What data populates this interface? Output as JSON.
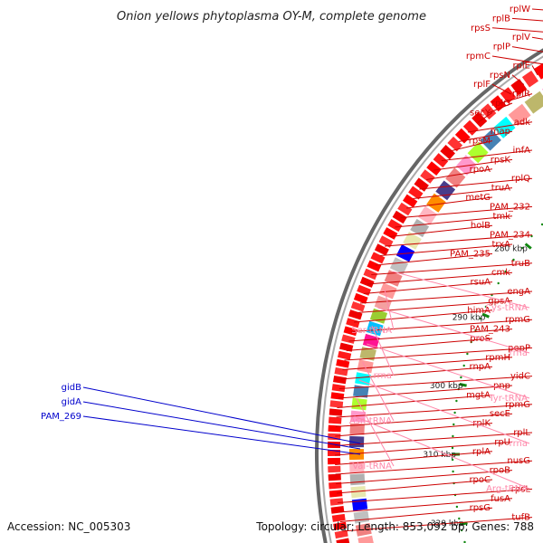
{
  "title": "Onion yellows phytoplasma OY-M, complete genome",
  "footer": {
    "accession": "Accession: NC_005303",
    "summary": "Topology: circular; Length: 853,092 bp; Genes: 788"
  },
  "colors": {
    "gene_red": "#ff0000",
    "gene_label": "#cc0000",
    "rna_label": "#ff88aa",
    "blue_label": "#0000cc",
    "backbone": "#777777",
    "tick": "#118811"
  },
  "scale_ticks": [
    "250 kbp",
    "260 kbp",
    "270 kbp",
    "280 kbp",
    "290 kbp",
    "300 kbp",
    "310 kbp",
    "320 kbp"
  ],
  "red_labels": [
    "rplW",
    "rplB",
    "rpsS",
    "rplV",
    "rplP",
    "rpmC",
    "rplE",
    "rpsN",
    "rplF",
    "rplR",
    "rplO",
    "secY",
    "adk",
    "map",
    "rpsM",
    "infA",
    "rpsK",
    "rpoA",
    "rplQ",
    "truA",
    "metG",
    "PAM_232",
    "tmk",
    "holB",
    "PAM_234",
    "trxA",
    "PAM_235",
    "truB",
    "cmk",
    "rsuA",
    "engA",
    "gpsA",
    "himA",
    "rpmG",
    "PAM_243",
    "proS",
    "pepP",
    "rpmH",
    "rnpA",
    "yidC",
    "pnp",
    "mgtA",
    "rpmG",
    "secE",
    "rplK",
    "rplL",
    "rpU",
    "rplA",
    "nusG",
    "rpoB",
    "rpoC",
    "rpsL",
    "fusA",
    "rpsG",
    "tufB"
  ],
  "rna_labels": [
    "Cys-tRNA",
    "Ser-tRNA",
    "rrna",
    "rrna",
    "Tyr-tRNA",
    "Asn-tRNA",
    "rrna",
    "Val-tRNA",
    "Arg-tRNA"
  ],
  "blue_labels": [
    "gidB",
    "gidA",
    "PAM_269"
  ]
}
